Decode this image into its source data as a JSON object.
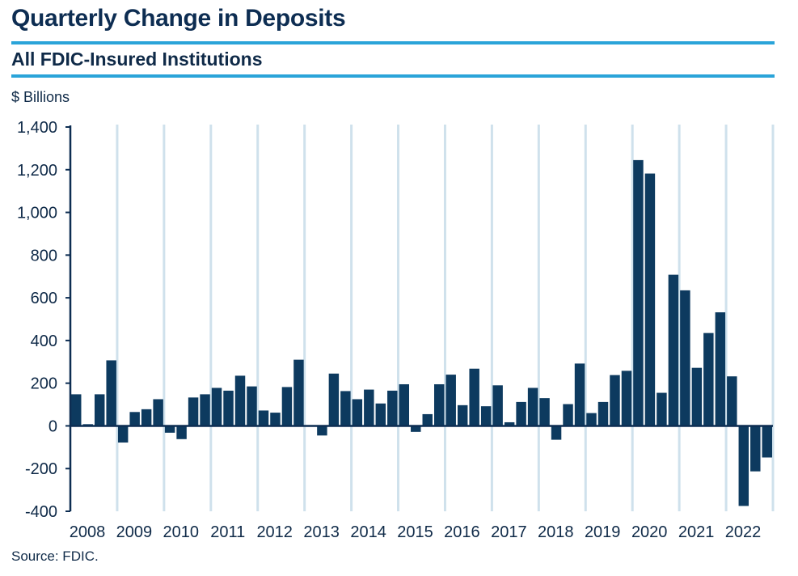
{
  "title": "Quarterly Change in Deposits",
  "subtitle": "All FDIC-Insured Institutions",
  "y_unit": "$ Billions",
  "source": "Source: FDIC.",
  "colors": {
    "bar": "#0d3a5f",
    "gridline": "#cfe1ec",
    "rule": "#2aa4d9",
    "axis": "#0d2d52"
  },
  "chart_data": {
    "type": "bar",
    "title": "Quarterly Change in Deposits",
    "subtitle": "All FDIC-Insured Institutions",
    "xlabel": "",
    "ylabel": "$ Billions",
    "ylim": [
      -400,
      1400
    ],
    "yticks": [
      -400,
      -200,
      0,
      200,
      400,
      600,
      800,
      1000,
      1200,
      1400
    ],
    "ytick_labels": [
      "-400",
      "-200",
      "0",
      "200",
      "400",
      "600",
      "800",
      "1,000",
      "1,200",
      "1,400"
    ],
    "years": [
      "2008",
      "2009",
      "2010",
      "2011",
      "2012",
      "2013",
      "2014",
      "2015",
      "2016",
      "2017",
      "2018",
      "2019",
      "2020",
      "2021",
      "2022"
    ],
    "categories": [
      "2008 Q1",
      "2008 Q2",
      "2008 Q3",
      "2008 Q4",
      "2009 Q1",
      "2009 Q2",
      "2009 Q3",
      "2009 Q4",
      "2010 Q1",
      "2010 Q2",
      "2010 Q3",
      "2010 Q4",
      "2011 Q1",
      "2011 Q2",
      "2011 Q3",
      "2011 Q4",
      "2012 Q1",
      "2012 Q2",
      "2012 Q3",
      "2012 Q4",
      "2013 Q1",
      "2013 Q2",
      "2013 Q3",
      "2013 Q4",
      "2014 Q1",
      "2014 Q2",
      "2014 Q3",
      "2014 Q4",
      "2015 Q1",
      "2015 Q2",
      "2015 Q3",
      "2015 Q4",
      "2016 Q1",
      "2016 Q2",
      "2016 Q3",
      "2016 Q4",
      "2017 Q1",
      "2017 Q2",
      "2017 Q3",
      "2017 Q4",
      "2018 Q1",
      "2018 Q2",
      "2018 Q3",
      "2018 Q4",
      "2019 Q1",
      "2019 Q2",
      "2019 Q3",
      "2019 Q4",
      "2020 Q1",
      "2020 Q2",
      "2020 Q3",
      "2020 Q4",
      "2021 Q1",
      "2021 Q2",
      "2021 Q3",
      "2021 Q4",
      "2022 Q1",
      "2022 Q2",
      "2022 Q3",
      "2022 Q4"
    ],
    "values": [
      148,
      8,
      148,
      307,
      -78,
      65,
      78,
      125,
      -32,
      -62,
      133,
      148,
      178,
      165,
      235,
      185,
      72,
      62,
      182,
      310,
      2,
      -45,
      245,
      163,
      125,
      170,
      105,
      165,
      195,
      -28,
      55,
      195,
      240,
      97,
      268,
      92,
      190,
      17,
      112,
      178,
      130,
      -65,
      102,
      292,
      60,
      112,
      238,
      258,
      1245,
      1182,
      155,
      708,
      635,
      272,
      435,
      532,
      232,
      -375,
      -213,
      -148
    ]
  }
}
